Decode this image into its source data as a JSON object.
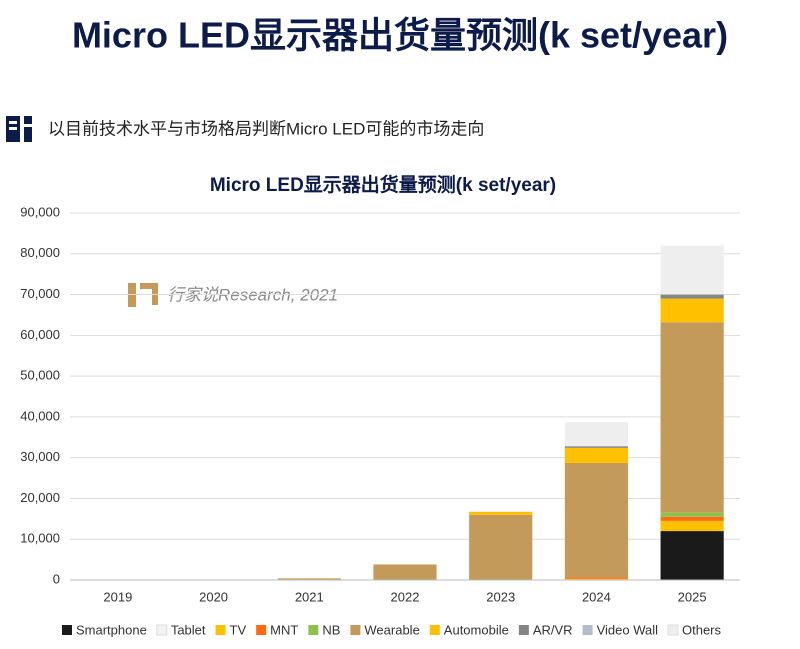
{
  "header": {
    "title": "Micro LED显示器出货量预测(k set/year)",
    "subtitle": "以目前技术水平与市场格局判断Micro LED可能的市场走向"
  },
  "chart_data": {
    "type": "stacked-bar",
    "title": "Micro LED显示器出货量预测(k set/year)",
    "watermark": "行家说Research, 2021",
    "categories": [
      "2019",
      "2020",
      "2021",
      "2022",
      "2023",
      "2024",
      "2025"
    ],
    "series": [
      {
        "name": "Smartphone",
        "color": "#1a1a1a",
        "values": [
          0,
          0,
          0,
          0,
          0,
          0,
          12000
        ]
      },
      {
        "name": "Tablet",
        "color": "#f2f2f2",
        "values": [
          0,
          0,
          0,
          0,
          0,
          0,
          0
        ]
      },
      {
        "name": "TV",
        "color": "#ffc000",
        "values": [
          0,
          0,
          0,
          0,
          0,
          300,
          2500
        ]
      },
      {
        "name": "MNT",
        "color": "#ff6a13",
        "values": [
          0,
          0,
          0,
          0,
          0,
          300,
          1000
        ]
      },
      {
        "name": "NB",
        "color": "#8bc34a",
        "values": [
          0,
          0,
          0,
          0,
          0,
          0,
          1000
        ]
      },
      {
        "name": "Wearable",
        "color": "#c49a5a",
        "values": [
          0,
          0,
          400,
          3800,
          16000,
          28100,
          46700
        ]
      },
      {
        "name": "Automobile",
        "color": "#ffc000",
        "values": [
          0,
          0,
          0,
          0,
          700,
          3700,
          5800
        ]
      },
      {
        "name": "AR/VR",
        "color": "#858585",
        "values": [
          0,
          0,
          0,
          0,
          0,
          400,
          1000
        ]
      },
      {
        "name": "Video Wall",
        "color": "#b4bccb",
        "values": [
          0,
          0,
          0,
          0,
          0,
          0,
          0
        ]
      },
      {
        "name": "Others",
        "color": "#eeeeee",
        "values": [
          0,
          0,
          0,
          0,
          300,
          5900,
          12000
        ]
      }
    ],
    "ylim": [
      0,
      90000
    ],
    "yticks": [
      0,
      {
        "value": 10000,
        "label": "10,000"
      },
      {
        "value": 20000,
        "label": "20,000"
      },
      {
        "value": 30000,
        "label": "30,000"
      },
      {
        "value": 40000,
        "label": "40,000"
      },
      {
        "value": 50000,
        "label": "50,000"
      },
      {
        "value": 60000,
        "label": "60,000"
      },
      {
        "value": 70000,
        "label": "70,000"
      },
      {
        "value": 80000,
        "label": "80,000"
      },
      {
        "value": 90000,
        "label": "90,000"
      }
    ],
    "grid": true
  }
}
